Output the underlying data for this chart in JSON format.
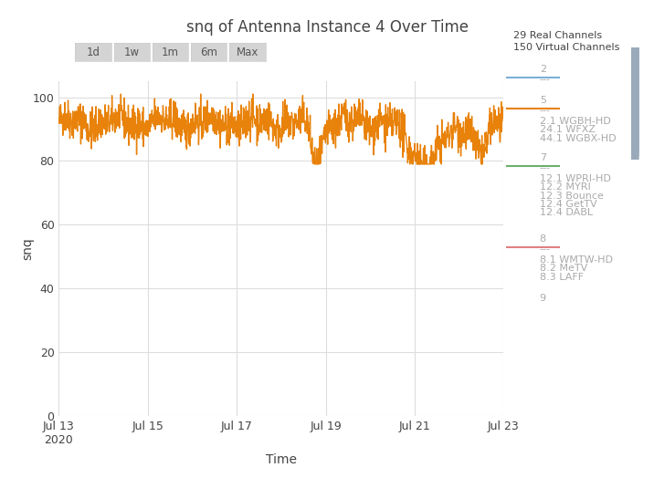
{
  "title": "snq of Antenna Instance 4 Over Time",
  "xlabel": "Time",
  "ylabel": "snq",
  "ylim": [
    0,
    105
  ],
  "yticks": [
    0,
    20,
    40,
    60,
    80,
    100
  ],
  "bg_color": "#ffffff",
  "plot_bg_color": "#ffffff",
  "grid_color": "#dddddd",
  "line_color": "#e8820a",
  "x_start": 0,
  "x_end": 10,
  "num_points": 1500,
  "signal_mean": 92,
  "signal_std": 3,
  "x_tick_positions": [
    0,
    2,
    4,
    6,
    8,
    10
  ],
  "x_tick_labels": [
    "Jul 13\n2020",
    "Jul 15",
    "Jul 17",
    "Jul 19",
    "Jul 21",
    "Jul 23"
  ],
  "legend_header1": "29 Real Channels",
  "legend_header2": "150 Virtual Channels",
  "button_labels": [
    "1d",
    "1w",
    "1m",
    "6m",
    "Max"
  ],
  "button_color": "#d4d4d4",
  "button_text_color": "#555555",
  "button_border_color": "#cccccc",
  "font_color": "#444444",
  "font_color_light": "#aaaaaa",
  "scrollbar_color": "#9aaabb",
  "legend_blue_color": "#7ab0d8",
  "legend_orange_color": "#e8820a",
  "legend_green_color": "#6ab06a",
  "legend_red_color": "#e08080",
  "legend_sections": [
    {
      "number": "2",
      "show_line": true,
      "line_color": "#7ab0d8",
      "entries": [
        "---"
      ]
    },
    {
      "number": "5",
      "show_line": true,
      "line_color": "#e8820a",
      "entries": [
        "---",
        "2.1 WGBH-HD",
        "24.1 WFXZ",
        "44.1 WGBX-HD"
      ]
    },
    {
      "number": "7",
      "show_line": true,
      "line_color": "#6ab06a",
      "entries": [
        "---",
        "12.1 WPRI-HD",
        "12.2 MYRI",
        "12.3 Bounce",
        "12.4 GetTV",
        "12.4 DABL"
      ]
    },
    {
      "number": "8",
      "show_line": true,
      "line_color": "#e08080",
      "entries": [
        "---",
        "8.1 WMTW-HD",
        "8.2 MeTV",
        "8.3 LAFF"
      ]
    },
    {
      "number": "9",
      "show_line": false,
      "line_color": null,
      "entries": []
    }
  ]
}
